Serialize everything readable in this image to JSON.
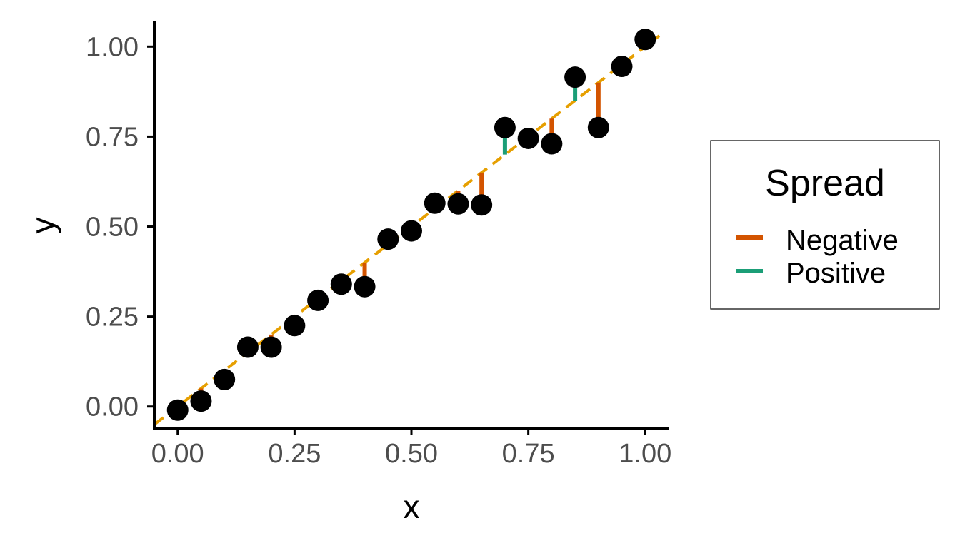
{
  "chart_data": {
    "type": "scatter",
    "title": "",
    "xlabel": "x",
    "ylabel": "y",
    "xlim": [
      -0.05,
      1.05
    ],
    "ylim": [
      -0.06,
      1.07
    ],
    "x_ticks": [
      0,
      0.25,
      0.5,
      0.75,
      1
    ],
    "x_tick_labels": [
      "0.00",
      "0.25",
      "0.50",
      "0.75",
      "1.00"
    ],
    "y_ticks": [
      0,
      0.25,
      0.5,
      0.75,
      1
    ],
    "y_tick_labels": [
      "0.00",
      "0.25",
      "0.50",
      "0.75",
      "1.00"
    ],
    "grid": false,
    "legend": {
      "title": "Spread",
      "position": "right",
      "items": [
        {
          "label": "Negative",
          "color": "#d35400"
        },
        {
          "label": "Positive",
          "color": "#1b9e77"
        }
      ]
    },
    "reference_line": {
      "style": "dashed",
      "color": "#e69f00",
      "slope": 1,
      "intercept": 0
    },
    "point_color": "#000000",
    "points": [
      {
        "x": 0.0,
        "y": -0.01
      },
      {
        "x": 0.05,
        "y": 0.015
      },
      {
        "x": 0.1,
        "y": 0.075
      },
      {
        "x": 0.15,
        "y": 0.165
      },
      {
        "x": 0.2,
        "y": 0.165
      },
      {
        "x": 0.25,
        "y": 0.225
      },
      {
        "x": 0.3,
        "y": 0.295
      },
      {
        "x": 0.35,
        "y": 0.34
      },
      {
        "x": 0.4,
        "y": 0.333
      },
      {
        "x": 0.45,
        "y": 0.465
      },
      {
        "x": 0.5,
        "y": 0.488
      },
      {
        "x": 0.55,
        "y": 0.565
      },
      {
        "x": 0.6,
        "y": 0.563
      },
      {
        "x": 0.65,
        "y": 0.56
      },
      {
        "x": 0.7,
        "y": 0.775
      },
      {
        "x": 0.75,
        "y": 0.745
      },
      {
        "x": 0.8,
        "y": 0.73
      },
      {
        "x": 0.85,
        "y": 0.915
      },
      {
        "x": 0.9,
        "y": 0.775
      },
      {
        "x": 0.95,
        "y": 0.945
      },
      {
        "x": 1.0,
        "y": 1.02
      }
    ],
    "colors": {
      "axis": "#000000",
      "tick_text": "#4d4d4d"
    }
  }
}
